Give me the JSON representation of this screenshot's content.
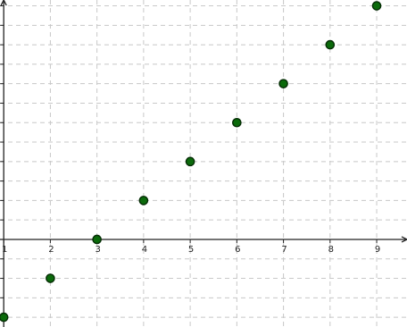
{
  "chart_data": {
    "type": "scatter",
    "title": "",
    "xlabel": "",
    "ylabel": "",
    "grid": true,
    "legend": "none",
    "xlim": [
      0.92,
      9.65
    ],
    "ylim": [
      -9.0,
      24.6
    ],
    "x_ticks": [
      1,
      2,
      3,
      4,
      5,
      6,
      7,
      8,
      9
    ],
    "y_ticks": [
      -8,
      -6,
      -4,
      -2,
      0,
      2,
      4,
      6,
      8,
      10,
      12,
      14,
      16,
      18,
      20,
      22,
      24
    ],
    "points": [
      {
        "x": 1,
        "y": -8
      },
      {
        "x": 2,
        "y": -4
      },
      {
        "x": 3,
        "y": 0
      },
      {
        "x": 4,
        "y": 4
      },
      {
        "x": 5,
        "y": 8
      },
      {
        "x": 6,
        "y": 12
      },
      {
        "x": 7,
        "y": 16
      },
      {
        "x": 8,
        "y": 20
      },
      {
        "x": 9,
        "y": 24
      }
    ],
    "point_color": "#0b6a0b"
  }
}
